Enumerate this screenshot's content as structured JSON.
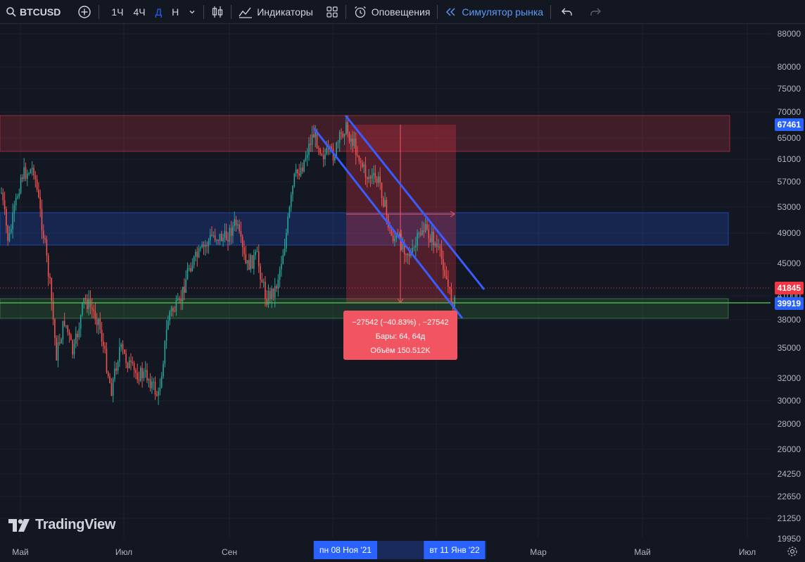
{
  "toolbar": {
    "symbol": "BTCUSD",
    "intervals": [
      "1Ч",
      "4Ч",
      "Д",
      "Н"
    ],
    "active_interval": "Д",
    "indicators_label": "Индикаторы",
    "alerts_label": "Оповещения",
    "replay_label": "Симулятор рынка"
  },
  "price_scale": {
    "labels": [
      "88000",
      "80000",
      "75000",
      "70000",
      "65000",
      "61000",
      "57000",
      "53000",
      "49000",
      "45000",
      "41000",
      "38000",
      "35000",
      "32000",
      "30000",
      "28000",
      "26000",
      "24250",
      "22650",
      "21250",
      "19950"
    ],
    "last_price_label": "39919",
    "zone_top_label": "67461",
    "crosshair_label": "41845"
  },
  "time_scale": {
    "labels": [
      "Май",
      "Июл",
      "Сен",
      "Мар",
      "Май",
      "Июл"
    ],
    "range_start_label": "пн 08 Ноя '21",
    "range_end_label": "вт 11 Янв '22"
  },
  "measure_tooltip": {
    "line1": "−27542 (−40.83%) , −27542",
    "line2": "Бары: 64, 64д",
    "line3": "Объём 150.512K"
  },
  "branding": {
    "logo_text": "TradingView"
  },
  "colors": {
    "background": "#131722",
    "up_candle": "#26a69a",
    "down_candle": "#ef5350",
    "accent_blue": "#2962ff",
    "red_badge": "#f23645",
    "green_line": "#4caf50",
    "channel_line": "#3b5bfd"
  },
  "chart_data": {
    "type": "candlestick",
    "symbol": "BTCUSD",
    "interval": "Д",
    "y_scale": "log",
    "ylim": [
      19950,
      88000
    ],
    "zones": [
      {
        "name": "resistance",
        "color": "red",
        "low": 62500,
        "high": 70000
      },
      {
        "name": "mid",
        "color": "blue",
        "low": 47500,
        "high": 52000
      },
      {
        "name": "support",
        "color": "green",
        "low": 38000,
        "high": 40000
      }
    ],
    "horizontal_lines": [
      {
        "price": 39919
      },
      {
        "price": 41845
      }
    ],
    "measure": {
      "change": -27542,
      "change_pct": -40.83,
      "bars": 64,
      "volume": "150.512K",
      "from_price": 67461,
      "to_price": 39919
    }
  }
}
